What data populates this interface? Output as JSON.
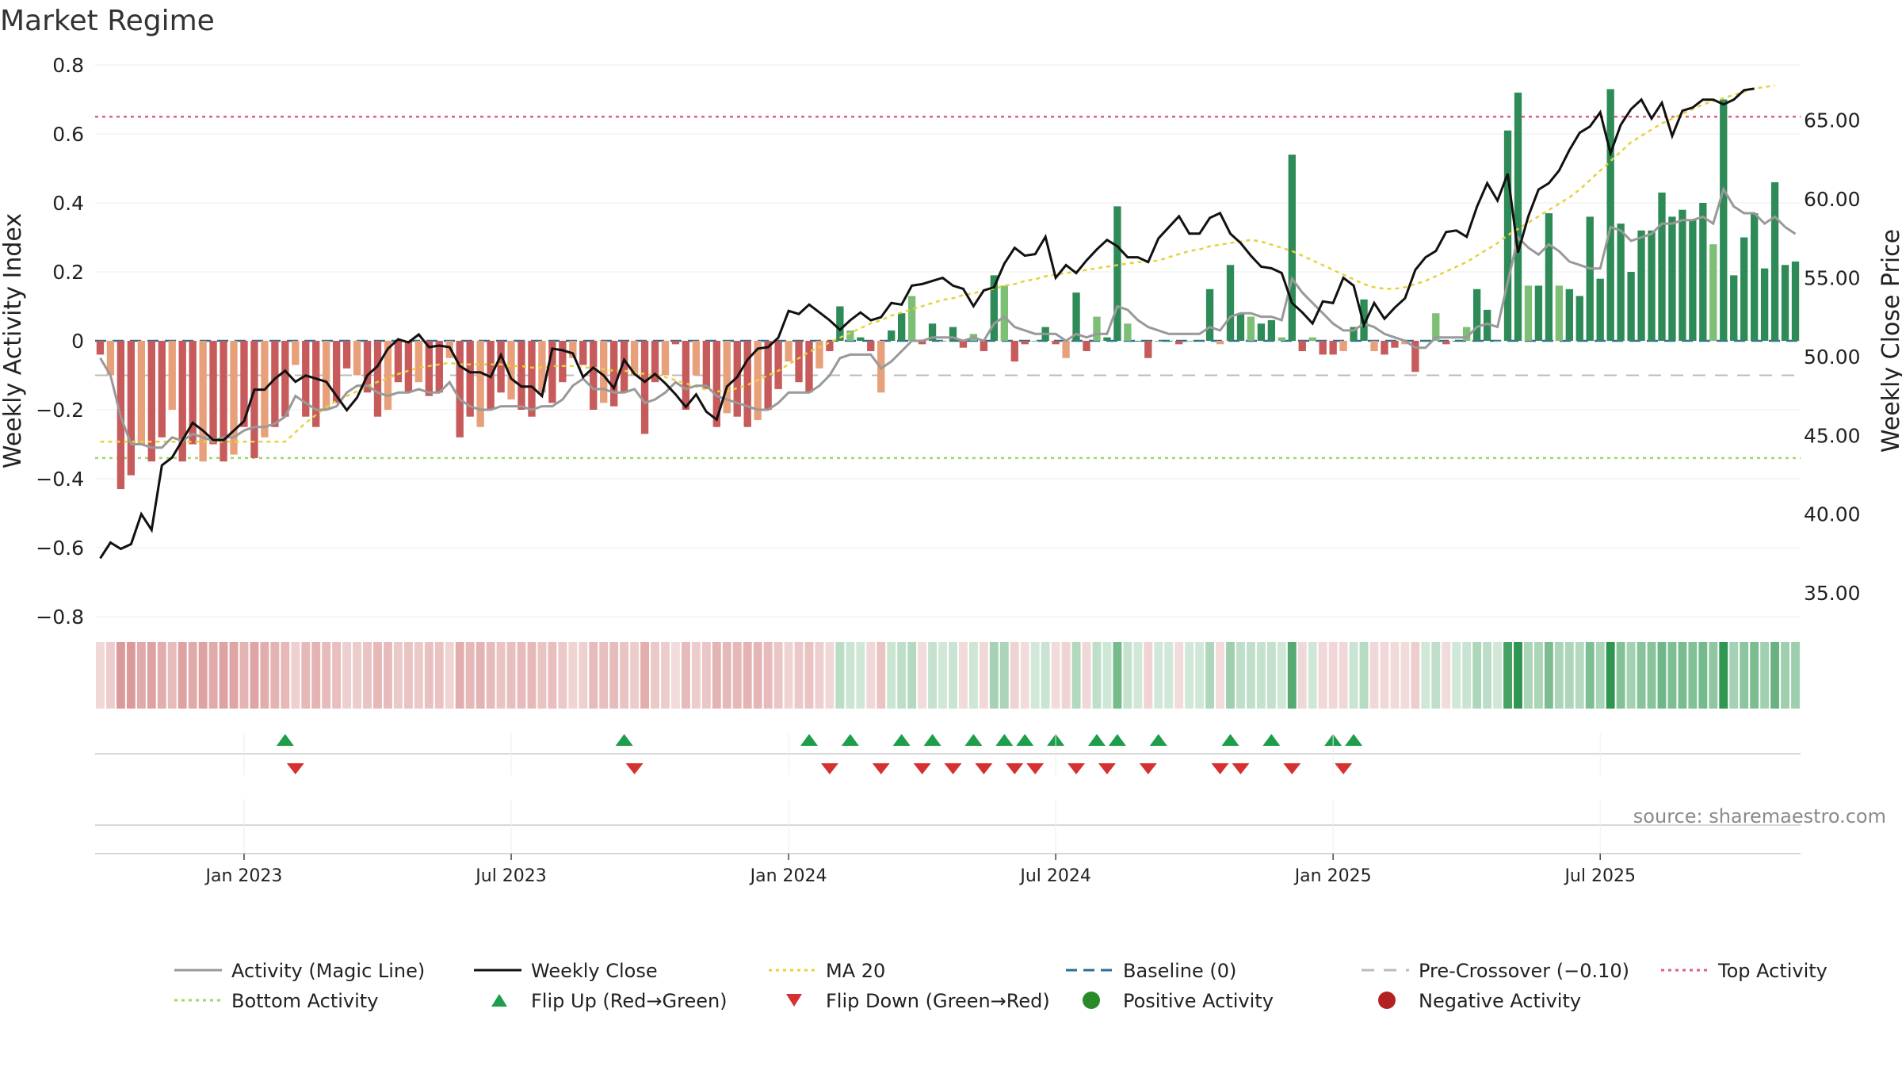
{
  "chart_data": {
    "type": "bar",
    "title": "Market Regime",
    "ylabel_left": "Weekly Activity Index",
    "ylabel_right": "Weekly Close Price",
    "ylim_left": [
      -0.8,
      0.8
    ],
    "ylim_right": [
      33.5,
      68.5
    ],
    "yticks_left": [
      "0.8",
      "0.6",
      "0.4",
      "0.2",
      "0",
      "−0.2",
      "−0.4",
      "−0.6",
      "−0.8"
    ],
    "yticks_right": [
      "65.00",
      "60.00",
      "55.00",
      "50.00",
      "45.00",
      "40.00",
      "35.00"
    ],
    "x_tick_labels": [
      "Jan 2023",
      "Jul 2023",
      "Jan 2024",
      "Jul 2024",
      "Jan 2025",
      "Jul 2025"
    ],
    "x_tick_weeks": [
      14,
      40,
      67,
      93,
      120,
      146
    ],
    "levels": {
      "top_activity": 0.65,
      "bottom_activity": -0.34,
      "baseline": 0,
      "pre_crossover": -0.1
    },
    "activity_values": [
      -0.04,
      -0.1,
      -0.43,
      -0.39,
      -0.3,
      -0.35,
      -0.28,
      -0.2,
      -0.35,
      -0.3,
      -0.35,
      -0.3,
      -0.35,
      -0.33,
      -0.25,
      -0.34,
      -0.28,
      -0.25,
      -0.22,
      -0.07,
      -0.22,
      -0.25,
      -0.2,
      -0.18,
      -0.08,
      -0.1,
      -0.15,
      -0.22,
      -0.2,
      -0.12,
      -0.15,
      -0.12,
      -0.16,
      -0.15,
      -0.05,
      -0.28,
      -0.22,
      -0.25,
      -0.2,
      -0.15,
      -0.17,
      -0.2,
      -0.22,
      -0.15,
      -0.18,
      -0.12,
      -0.05,
      -0.07,
      -0.2,
      -0.18,
      -0.19,
      -0.15,
      -0.1,
      -0.27,
      -0.12,
      -0.1,
      -0.01,
      -0.2,
      -0.1,
      -0.14,
      -0.25,
      -0.21,
      -0.22,
      -0.25,
      -0.23,
      -0.2,
      -0.14,
      -0.06,
      -0.12,
      -0.15,
      -0.08,
      -0.03,
      0.1,
      0.03,
      0.01,
      -0.03,
      -0.15,
      0.03,
      0.08,
      0.13,
      -0.01,
      0.05,
      0.0,
      0.04,
      -0.02,
      0.02,
      -0.03,
      0.19,
      0.16,
      -0.06,
      -0.01,
      0.0,
      0.04,
      -0.01,
      -0.05,
      0.14,
      -0.03,
      0.07,
      0.01,
      0.39,
      0.05,
      0.0,
      -0.05,
      0.0,
      0.0,
      -0.01,
      0.0,
      0.0,
      0.15,
      -0.01,
      0.22,
      0.08,
      0.07,
      0.05,
      0.06,
      0.01,
      0.54,
      -0.03,
      0.01,
      -0.04,
      -0.04,
      -0.03,
      0.04,
      0.12,
      -0.03,
      -0.04,
      -0.02,
      -0.01,
      -0.09,
      0.0,
      0.08,
      -0.01,
      0.0,
      0.04,
      0.15,
      0.09,
      0.0,
      0.61,
      0.72,
      0.16,
      0.16,
      0.37,
      0.16,
      0.15,
      0.13,
      0.36,
      0.18,
      0.73,
      0.34,
      0.2,
      0.32,
      0.32,
      0.43,
      0.36,
      0.38,
      0.35,
      0.4,
      0.28,
      0.7,
      0.19,
      0.3,
      0.37,
      0.21,
      0.46,
      0.22,
      0.23
    ],
    "magic_line_values": [
      -0.05,
      -0.1,
      -0.22,
      -0.3,
      -0.3,
      -0.31,
      -0.31,
      -0.28,
      -0.29,
      -0.27,
      -0.28,
      -0.29,
      -0.28,
      -0.28,
      -0.26,
      -0.25,
      -0.25,
      -0.24,
      -0.22,
      -0.16,
      -0.18,
      -0.2,
      -0.2,
      -0.19,
      -0.15,
      -0.13,
      -0.13,
      -0.15,
      -0.16,
      -0.15,
      -0.15,
      -0.14,
      -0.15,
      -0.15,
      -0.12,
      -0.17,
      -0.19,
      -0.2,
      -0.2,
      -0.19,
      -0.19,
      -0.19,
      -0.2,
      -0.19,
      -0.19,
      -0.17,
      -0.13,
      -0.11,
      -0.14,
      -0.14,
      -0.15,
      -0.15,
      -0.14,
      -0.18,
      -0.17,
      -0.15,
      -0.12,
      -0.14,
      -0.13,
      -0.13,
      -0.16,
      -0.17,
      -0.18,
      -0.19,
      -0.2,
      -0.2,
      -0.18,
      -0.15,
      -0.15,
      -0.15,
      -0.13,
      -0.1,
      -0.05,
      -0.04,
      -0.04,
      -0.04,
      -0.08,
      -0.06,
      -0.03,
      0.0,
      0.0,
      0.01,
      0.01,
      0.01,
      0.0,
      0.01,
      0.0,
      0.05,
      0.07,
      0.04,
      0.03,
      0.02,
      0.02,
      0.02,
      0.0,
      0.02,
      0.01,
      0.02,
      0.02,
      0.1,
      0.09,
      0.06,
      0.04,
      0.03,
      0.02,
      0.02,
      0.02,
      0.02,
      0.04,
      0.03,
      0.07,
      0.08,
      0.08,
      0.07,
      0.07,
      0.06,
      0.18,
      0.14,
      0.11,
      0.08,
      0.05,
      0.03,
      0.03,
      0.05,
      0.04,
      0.02,
      0.01,
      0.0,
      -0.02,
      -0.02,
      0.01,
      0.01,
      0.01,
      0.01,
      0.04,
      0.05,
      0.04,
      0.17,
      0.3,
      0.27,
      0.25,
      0.28,
      0.26,
      0.23,
      0.22,
      0.21,
      0.21,
      0.33,
      0.32,
      0.29,
      0.3,
      0.31,
      0.34,
      0.34,
      0.35,
      0.35,
      0.36,
      0.34,
      0.44,
      0.39,
      0.37,
      0.37,
      0.34,
      0.36,
      0.33,
      0.31
    ],
    "weekly_close_values": [
      37.2,
      38.2,
      37.8,
      38.1,
      40.0,
      39.0,
      43.1,
      43.6,
      44.7,
      45.8,
      45.3,
      44.7,
      44.7,
      45.3,
      45.9,
      47.9,
      47.9,
      48.6,
      49.1,
      48.4,
      48.8,
      48.6,
      48.4,
      47.5,
      46.6,
      47.4,
      48.8,
      49.4,
      50.5,
      51.1,
      50.9,
      51.4,
      50.6,
      50.7,
      50.6,
      49.4,
      49.0,
      49.0,
      48.7,
      50.1,
      48.6,
      48.1,
      48.1,
      47.5,
      50.5,
      50.4,
      50.2,
      48.7,
      49.3,
      48.8,
      48.0,
      49.8,
      48.9,
      48.4,
      48.9,
      48.3,
      47.6,
      46.8,
      47.6,
      46.5,
      46.0,
      48.1,
      48.7,
      49.8,
      50.5,
      50.6,
      51.2,
      52.9,
      52.7,
      53.3,
      52.8,
      52.3,
      51.7,
      52.3,
      52.8,
      52.3,
      52.5,
      53.4,
      53.3,
      54.5,
      54.6,
      54.8,
      55.0,
      54.5,
      54.3,
      53.2,
      54.2,
      54.4,
      55.9,
      56.9,
      56.4,
      56.5,
      57.6,
      55.0,
      55.8,
      55.3,
      56.1,
      56.8,
      57.4,
      57.0,
      56.3,
      56.3,
      56.0,
      57.5,
      58.2,
      58.9,
      57.8,
      57.8,
      58.8,
      59.1,
      57.8,
      57.2,
      56.4,
      55.7,
      55.6,
      55.3,
      53.4,
      52.8,
      52.1,
      53.5,
      53.4,
      55.0,
      54.5,
      52.0,
      53.4,
      52.4,
      53.1,
      53.7,
      55.5,
      56.3,
      56.7,
      57.9,
      58.0,
      57.6,
      59.5,
      61.0,
      59.9,
      61.6,
      56.6,
      58.9,
      60.6,
      61.0,
      61.8,
      63.1,
      64.2,
      64.6,
      65.5,
      62.9,
      64.7,
      65.7,
      66.3,
      65.1,
      66.1,
      64.0,
      65.6,
      65.8,
      66.3,
      66.3,
      66.0,
      66.3,
      66.9,
      67.0
    ],
    "ma20_values": [
      44.6,
      44.6,
      44.6,
      44.6,
      44.6,
      44.6,
      44.6,
      44.6,
      44.6,
      44.6,
      44.6,
      44.6,
      44.6,
      44.6,
      44.6,
      44.6,
      44.6,
      44.6,
      44.6,
      45.2,
      45.8,
      46.3,
      46.8,
      47.2,
      47.5,
      47.8,
      48.1,
      48.4,
      48.6,
      48.9,
      49.1,
      49.3,
      49.4,
      49.5,
      49.6,
      49.5,
      49.5,
      49.5,
      49.5,
      49.5,
      49.4,
      49.4,
      49.3,
      49.3,
      49.4,
      49.4,
      49.4,
      49.3,
      49.3,
      49.2,
      49.1,
      49.1,
      49.0,
      48.9,
      48.8,
      48.7,
      48.5,
      48.3,
      48.1,
      47.9,
      47.8,
      47.8,
      48.0,
      48.2,
      48.5,
      48.8,
      49.1,
      49.5,
      49.9,
      50.3,
      50.6,
      50.9,
      51.2,
      51.5,
      51.8,
      52.1,
      52.3,
      52.6,
      52.8,
      53.0,
      53.2,
      53.4,
      53.6,
      53.7,
      53.9,
      54.0,
      54.2,
      54.3,
      54.5,
      54.6,
      54.8,
      54.9,
      55.1,
      55.2,
      55.3,
      55.4,
      55.5,
      55.6,
      55.7,
      55.8,
      55.9,
      56.0,
      56.0,
      56.1,
      56.3,
      56.5,
      56.7,
      56.8,
      57.0,
      57.1,
      57.2,
      57.3,
      57.4,
      57.3,
      57.1,
      56.9,
      56.7,
      56.4,
      56.1,
      55.8,
      55.5,
      55.2,
      54.9,
      54.6,
      54.4,
      54.3,
      54.3,
      54.4,
      54.6,
      54.8,
      55.1,
      55.4,
      55.7,
      56.0,
      56.4,
      56.8,
      57.2,
      57.7,
      58.1,
      58.5,
      58.9,
      59.3,
      59.7,
      60.1,
      60.6,
      61.2,
      61.8,
      62.4,
      63.0,
      63.6,
      64.0,
      64.4,
      64.8,
      65.1,
      65.4,
      65.7,
      66.0,
      66.2,
      66.4,
      66.6,
      66.8,
      67.0,
      67.1,
      67.2
    ],
    "flip_up_weeks": [
      18,
      51,
      69,
      73,
      78,
      81,
      85,
      88,
      90,
      93,
      97,
      99,
      103,
      110,
      114,
      120,
      122
    ],
    "flip_down_weeks": [
      19,
      52,
      71,
      76,
      80,
      83,
      86,
      89,
      91,
      95,
      98,
      102,
      109,
      111,
      116,
      121
    ],
    "legend": [
      {
        "label": "Activity (Magic Line)",
        "style": "gray-line"
      },
      {
        "label": "Weekly Close",
        "style": "black-line"
      },
      {
        "label": "MA 20",
        "style": "yellow-dotted"
      },
      {
        "label": "Baseline (0)",
        "style": "blue-dashed"
      },
      {
        "label": "Pre-Crossover (−0.10)",
        "style": "gray-dashed"
      },
      {
        "label": "Top Activity",
        "style": "red-dotted"
      },
      {
        "label": "Bottom Activity",
        "style": "green-dotted"
      },
      {
        "label": "Flip Up (Red→Green)",
        "style": "triangle-up"
      },
      {
        "label": "Flip Down (Green→Red)",
        "style": "triangle-down"
      },
      {
        "label": "Positive Activity",
        "style": "green-dot"
      },
      {
        "label": "Negative Activity",
        "style": "red-dot"
      }
    ],
    "legend_placement": "bottom",
    "grid": true
  },
  "source_text": "source: sharemaestro.com",
  "colors": {
    "pos_dark": "#2e8b57",
    "pos_light": "#7dbf74",
    "neg_dark": "#c75a5a",
    "neg_light": "#e8a07a",
    "magic_line": "#999999",
    "close_line": "#111111",
    "ma20": "#e6d23a",
    "baseline": "#2a6f97",
    "pre_crossover": "#bbbbbb",
    "top_activity": "#e06080",
    "bottom_activity": "#9ed96a",
    "flip_up": "#1e9e4a",
    "flip_down": "#d63030",
    "positive_dot": "#2a8a2a",
    "negative_dot": "#b22222"
  }
}
